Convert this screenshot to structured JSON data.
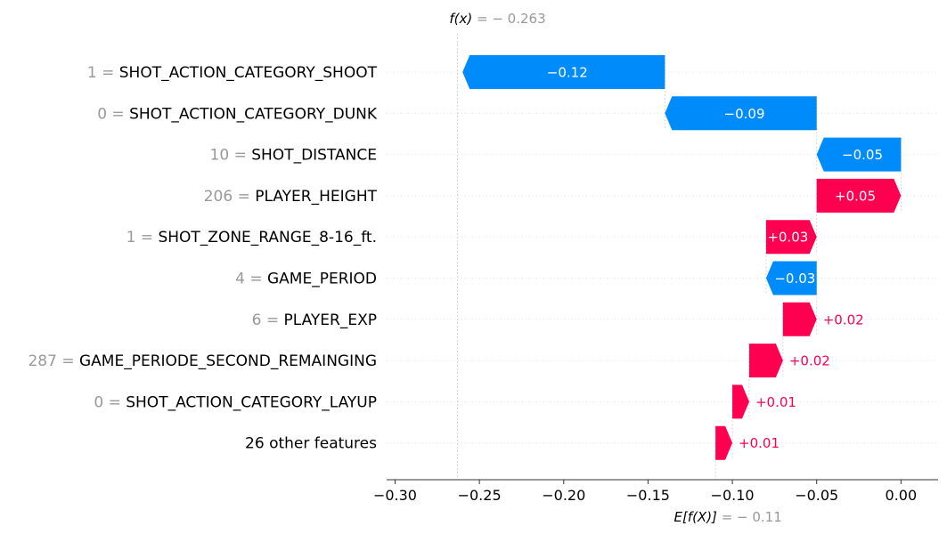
{
  "chart_data": {
    "type": "waterfall",
    "base_value": -0.11,
    "output_value": -0.263,
    "fx_label": {
      "var": "f(x)",
      "eq": " = − 0.263"
    },
    "ex_label": {
      "var": "E[f(X)]",
      "eq": " = − 0.11"
    },
    "features": [
      {
        "value": "1",
        "name": "SHOT_ACTION_CATEGORY_SHOOT",
        "contribution": -0.12,
        "label": "−0.12"
      },
      {
        "value": "0",
        "name": "SHOT_ACTION_CATEGORY_DUNK",
        "contribution": -0.09,
        "label": "−0.09"
      },
      {
        "value": "10",
        "name": "SHOT_DISTANCE",
        "contribution": -0.05,
        "label": "−0.05"
      },
      {
        "value": "206",
        "name": "PLAYER_HEIGHT",
        "contribution": 0.05,
        "label": "+0.05"
      },
      {
        "value": "1",
        "name": "SHOT_ZONE_RANGE_8-16_ft.",
        "contribution": 0.03,
        "label": "+0.03"
      },
      {
        "value": "4",
        "name": "GAME_PERIOD",
        "contribution": -0.03,
        "label": "−0.03"
      },
      {
        "value": "6",
        "name": "PLAYER_EXP",
        "contribution": 0.02,
        "label": "+0.02"
      },
      {
        "value": "287",
        "name": "GAME_PERIODE_SECOND_REMAINGING",
        "contribution": 0.02,
        "label": "+0.02"
      },
      {
        "value": "0",
        "name": "SHOT_ACTION_CATEGORY_LAYUP",
        "contribution": 0.01,
        "label": "+0.01"
      },
      {
        "value": "",
        "name": "26 other features",
        "contribution": 0.01,
        "label": "+0.01"
      }
    ],
    "x_ticks": [
      {
        "value": -0.3,
        "label": "−0.30"
      },
      {
        "value": -0.25,
        "label": "−0.25"
      },
      {
        "value": -0.2,
        "label": "−0.20"
      },
      {
        "value": -0.15,
        "label": "−0.15"
      },
      {
        "value": -0.1,
        "label": "−0.10"
      },
      {
        "value": -0.05,
        "label": "−0.05"
      },
      {
        "value": 0.0,
        "label": "0.00"
      }
    ],
    "xlim": [
      -0.305,
      0.022
    ],
    "colors": {
      "negative": "#008bfb",
      "positive": "#ff0051",
      "axis": "#333333",
      "guide": "#cccccc",
      "muted": "#999999"
    }
  }
}
